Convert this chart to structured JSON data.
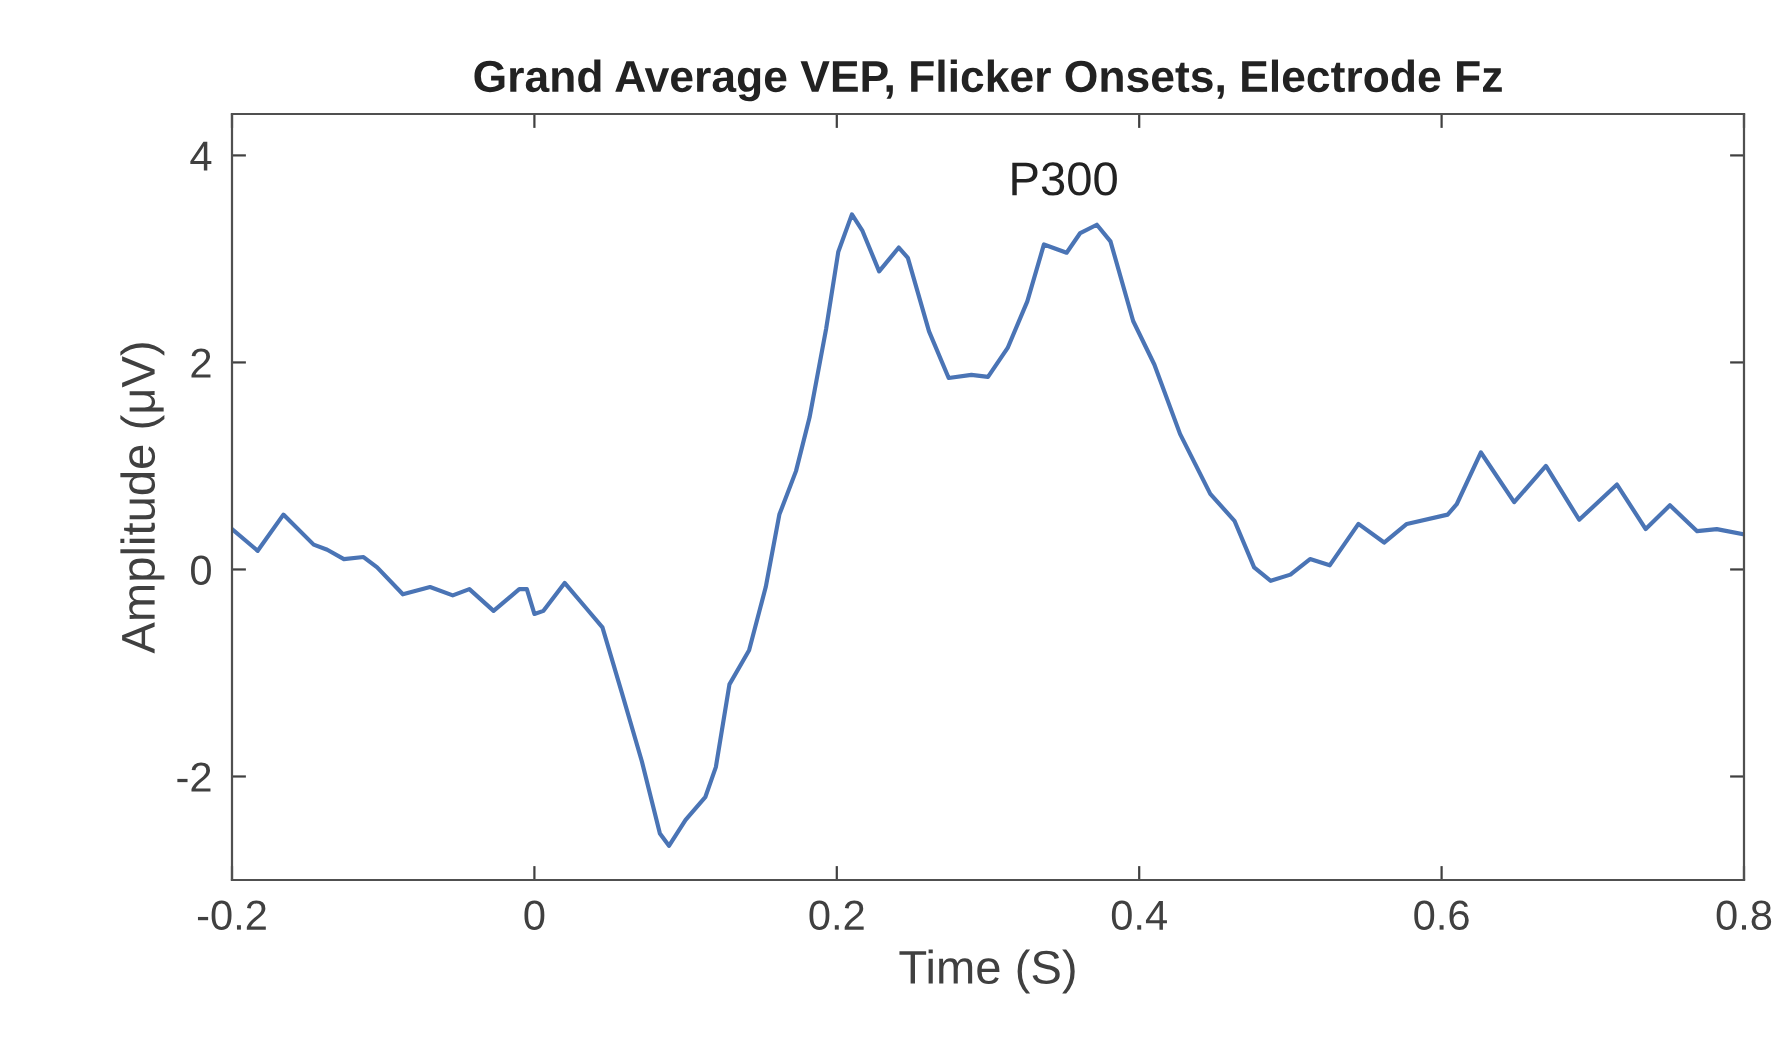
{
  "chart_data": {
    "type": "line",
    "title": "Grand Average VEP, Flicker Onsets, Electrode Fz",
    "xlabel": "Time (S)",
    "ylabel": "Amplitude (μV)",
    "xlim": [
      -0.2,
      0.8
    ],
    "xticks": [
      -0.2,
      0,
      0.2,
      0.4,
      0.6,
      0.8
    ],
    "ylim": [
      -3,
      4.4
    ],
    "yticks": [
      -2,
      0,
      2,
      4
    ],
    "grid": false,
    "legend": false,
    "marker": "none",
    "line_style": "solid",
    "annotations": [
      "P300"
    ],
    "x": [
      -0.2,
      -0.183,
      -0.166,
      -0.146,
      -0.137,
      -0.126,
      -0.113,
      -0.104,
      -0.087,
      -0.069,
      -0.054,
      -0.043,
      -0.027,
      -0.01,
      -0.005,
      0.0,
      0.006,
      0.02,
      0.034,
      0.045,
      0.058,
      0.071,
      0.083,
      0.089,
      0.1,
      0.113,
      0.12,
      0.129,
      0.142,
      0.153,
      0.162,
      0.173,
      0.182,
      0.193,
      0.201,
      0.21,
      0.217,
      0.228,
      0.241,
      0.247,
      0.261,
      0.274,
      0.289,
      0.3,
      0.313,
      0.326,
      0.337,
      0.352,
      0.361,
      0.372,
      0.381,
      0.396,
      0.41,
      0.427,
      0.447,
      0.463,
      0.476,
      0.487,
      0.5,
      0.513,
      0.526,
      0.545,
      0.562,
      0.577,
      0.604,
      0.61,
      0.626,
      0.648,
      0.669,
      0.691,
      0.716,
      0.735,
      0.751,
      0.769,
      0.782,
      0.8
    ],
    "series": [
      {
        "color": "#4a74b5",
        "values": [
          0.39,
          0.18,
          0.53,
          0.24,
          0.19,
          0.1,
          0.12,
          0.02,
          -0.24,
          -0.17,
          -0.25,
          -0.19,
          -0.4,
          -0.19,
          -0.19,
          -0.43,
          -0.4,
          -0.13,
          -0.37,
          -0.56,
          -1.2,
          -1.85,
          -2.55,
          -2.67,
          -2.42,
          -2.2,
          -1.91,
          -1.11,
          -0.78,
          -0.17,
          0.53,
          0.95,
          1.47,
          2.33,
          3.07,
          3.43,
          3.27,
          2.88,
          3.11,
          3.01,
          2.3,
          1.85,
          1.88,
          1.86,
          2.14,
          2.59,
          3.14,
          3.06,
          3.25,
          3.33,
          3.17,
          2.4,
          1.98,
          1.31,
          0.73,
          0.47,
          0.02,
          -0.11,
          -0.05,
          0.1,
          0.04,
          0.44,
          0.26,
          0.44,
          0.53,
          0.63,
          1.13,
          0.65,
          1.0,
          0.48,
          0.82,
          0.39,
          0.62,
          0.37,
          0.39,
          0.34
        ]
      }
    ]
  }
}
